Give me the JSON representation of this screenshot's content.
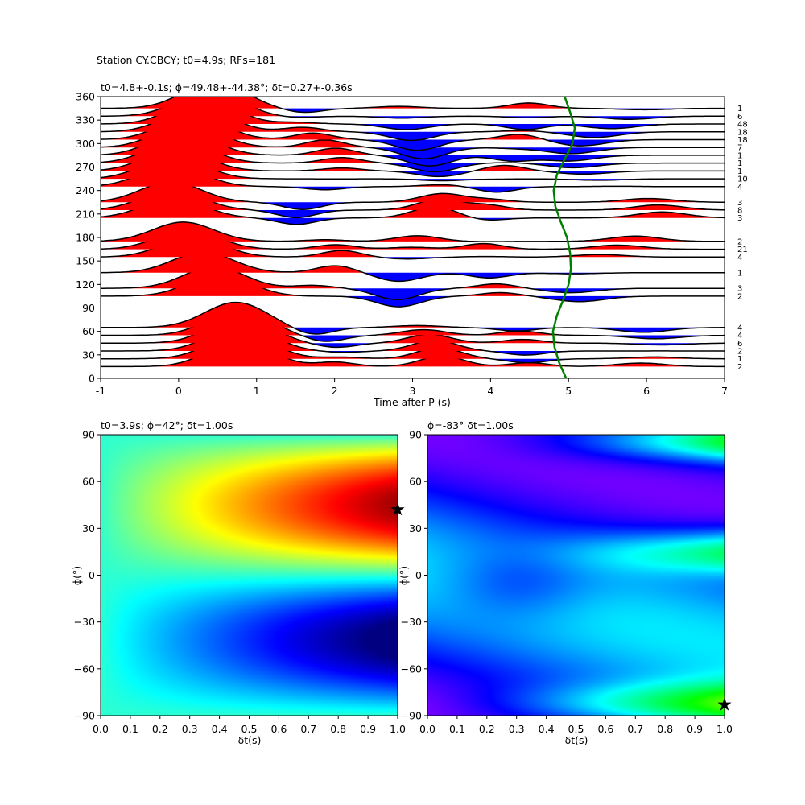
{
  "figure": {
    "suptitle": "Station CY.CBCY; t0=4.9s; RFs=181"
  },
  "chart_data": [
    {
      "type": "line",
      "title": "t0=4.8+-0.1s; ϕ=49.48+-44.38°; δt=0.27+-0.36s",
      "xlabel": "Time after P (s)",
      "ylabel": "",
      "xlim": [
        -1,
        7
      ],
      "ylim": [
        0,
        360
      ],
      "xticks": [
        -1,
        0,
        1,
        2,
        3,
        4,
        5,
        6,
        7
      ],
      "yticks": [
        0,
        30,
        60,
        90,
        120,
        150,
        180,
        210,
        240,
        270,
        300,
        330,
        360
      ],
      "positive_fill": "#ff0000",
      "negative_fill": "#0000ff",
      "trace_color": "#000000",
      "curve_color": "#008000",
      "grid": false,
      "traces": [
        {
          "baz": 15,
          "count": "2"
        },
        {
          "baz": 25,
          "count": "1"
        },
        {
          "baz": 35,
          "count": "2"
        },
        {
          "baz": 45,
          "count": "6"
        },
        {
          "baz": 55,
          "count": "4"
        },
        {
          "baz": 65,
          "count": "4"
        },
        {
          "baz": 105,
          "count": "2"
        },
        {
          "baz": 115,
          "count": "3"
        },
        {
          "baz": 135,
          "count": "1"
        },
        {
          "baz": 155,
          "count": "4"
        },
        {
          "baz": 165,
          "count": "21"
        },
        {
          "baz": 175,
          "count": "2"
        },
        {
          "baz": 205,
          "count": "3"
        },
        {
          "baz": 215,
          "count": "8"
        },
        {
          "baz": 225,
          "count": "3"
        },
        {
          "baz": 245,
          "count": "4"
        },
        {
          "baz": 255,
          "count": "10"
        },
        {
          "baz": 265,
          "count": "1"
        },
        {
          "baz": 275,
          "count": "1"
        },
        {
          "baz": 285,
          "count": "1"
        },
        {
          "baz": 295,
          "count": "7"
        },
        {
          "baz": 305,
          "count": "18"
        },
        {
          "baz": 315,
          "count": "18"
        },
        {
          "baz": 325,
          "count": "48"
        },
        {
          "baz": 335,
          "count": "6"
        },
        {
          "baz": 345,
          "count": "1"
        }
      ],
      "t0_curve": {
        "baz": [
          0,
          20,
          40,
          60,
          80,
          100,
          120,
          140,
          160,
          180,
          200,
          220,
          240,
          260,
          280,
          300,
          320,
          340,
          360
        ],
        "t": [
          4.97,
          4.88,
          4.82,
          4.8,
          4.85,
          4.93,
          5.0,
          5.03,
          5.02,
          4.98,
          4.9,
          4.83,
          4.81,
          4.85,
          4.95,
          5.05,
          5.08,
          5.02,
          4.95
        ]
      }
    },
    {
      "type": "heatmap",
      "title": "t0=3.9s; ϕ=42°; δt=1.00s",
      "xlabel": "δt(s)",
      "ylabel": "ϕ(°)",
      "xlim": [
        0,
        1
      ],
      "ylim": [
        -90,
        90
      ],
      "xticks": [
        0.0,
        0.1,
        0.2,
        0.3,
        0.4,
        0.5,
        0.6,
        0.7,
        0.8,
        0.9,
        1.0
      ],
      "yticks": [
        -90,
        -60,
        -30,
        0,
        30,
        60,
        90
      ],
      "colormap": "jet",
      "best": {
        "dt": 1.0,
        "phi": 42
      }
    },
    {
      "type": "heatmap",
      "title": "ϕ=-83° δt=1.00s",
      "xlabel": "δt(s)",
      "ylabel": "ϕ(°)",
      "xlim": [
        0,
        1
      ],
      "ylim": [
        -90,
        90
      ],
      "xticks": [
        0.0,
        0.1,
        0.2,
        0.3,
        0.4,
        0.5,
        0.6,
        0.7,
        0.8,
        0.9,
        1.0
      ],
      "yticks": [
        -90,
        -60,
        -30,
        0,
        30,
        60,
        90
      ],
      "colormap": "hsv",
      "best": {
        "dt": 1.0,
        "phi": -83
      }
    }
  ]
}
